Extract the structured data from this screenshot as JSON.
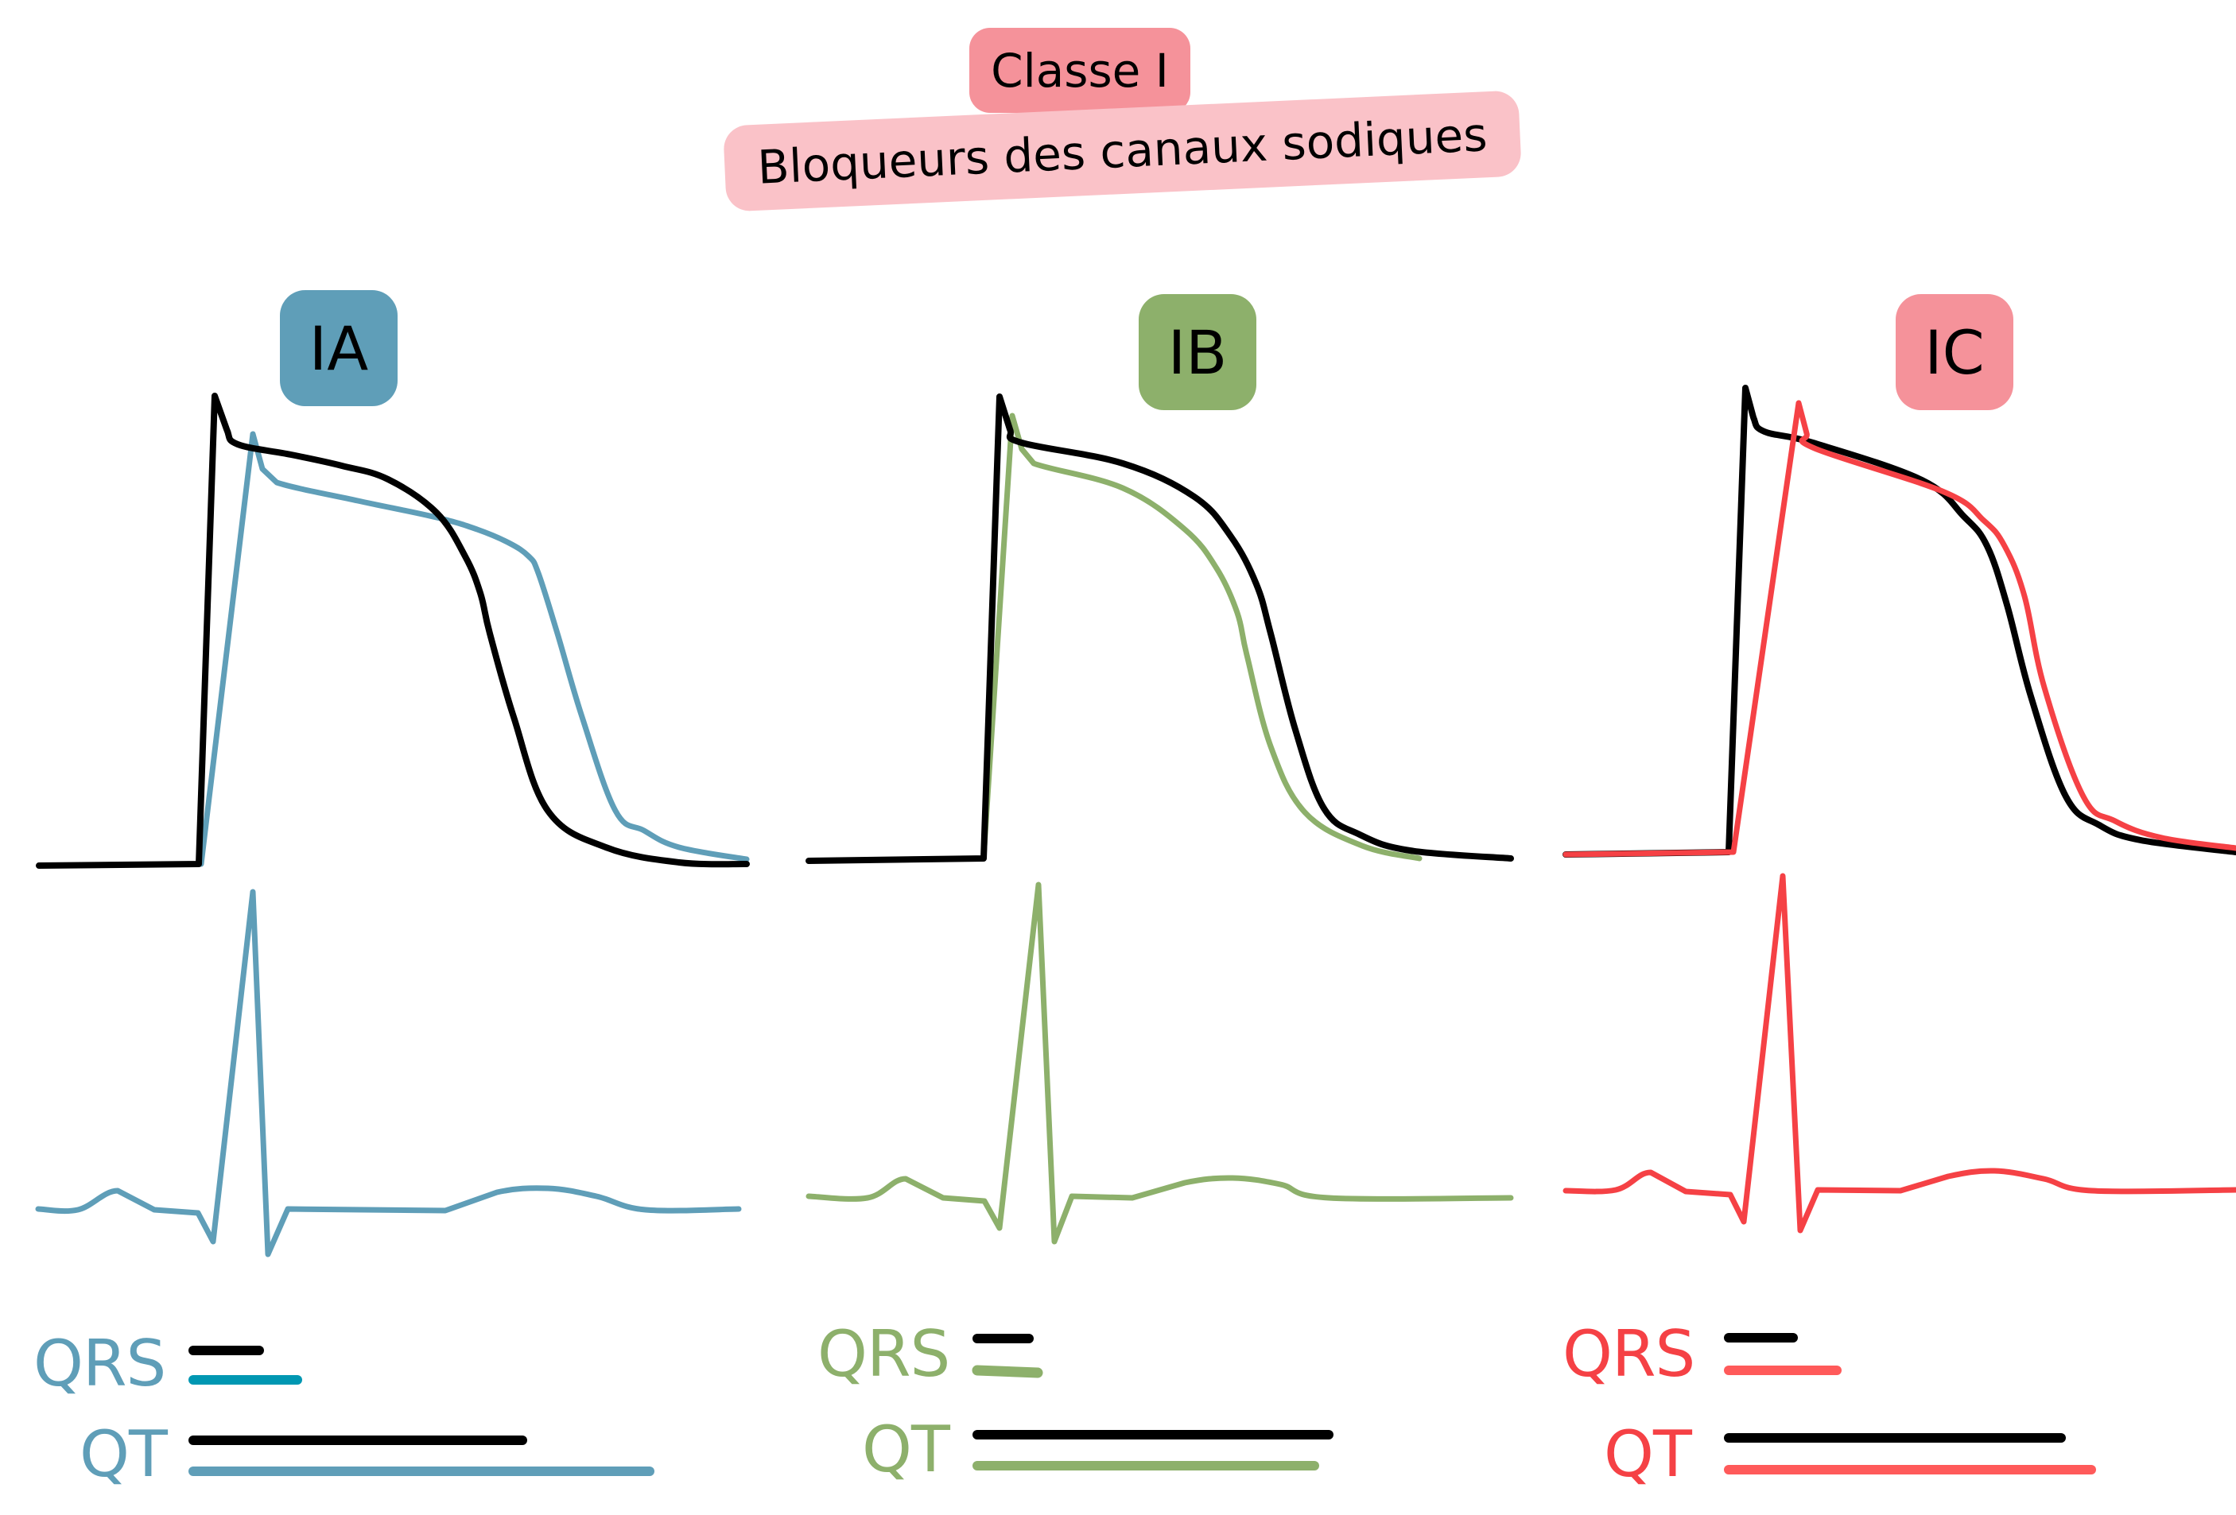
{
  "header": {
    "title": "Classe I",
    "subtitle": "Bloqueurs des canaux sodiques"
  },
  "colors": {
    "title_bg": "#F5929A",
    "subtitle_bg": "#FAC2C8",
    "reference": "#000000",
    "IA": "#5F9EB8",
    "IA_qrs_bar": "#0097B2",
    "IB": "#8DB06B",
    "IC": "#F54145",
    "IC_bar": "#FF5A5A",
    "IC_box": "#F5929A"
  },
  "panels": [
    {
      "id": "IA",
      "label": "IA",
      "box_color": "#5F9EB8",
      "drug_color": "#5F9EB8",
      "qrs_label": "QRS",
      "qt_label": "QT"
    },
    {
      "id": "IB",
      "label": "IB",
      "box_color": "#8DB06B",
      "drug_color": "#8DB06B",
      "qrs_label": "QRS",
      "qt_label": "QT"
    },
    {
      "id": "IC",
      "label": "IC",
      "box_color": "#F5929A",
      "drug_color": "#F54145",
      "qrs_label": "QRS",
      "qt_label": "QT"
    }
  ],
  "chart_data": [
    {
      "type": "line",
      "title": "IA",
      "description": "Action potential: reference (black) vs class IA (blue) — slower phase 0 upstroke, prolonged repolarization",
      "series": [
        {
          "name": "reference_action_potential",
          "color": "#000000",
          "points": [
            [
              49,
              1089
            ],
            [
              250,
              1087
            ],
            [
              270,
              498
            ],
            [
              285,
              540
            ],
            [
              299,
              559
            ],
            [
              366,
              572
            ],
            [
              430,
              586
            ],
            [
              488,
              603
            ],
            [
              549,
              645
            ],
            [
              585,
              700
            ],
            [
              604,
              746
            ],
            [
              616,
              797
            ],
            [
              646,
              902
            ],
            [
              689,
              1020
            ],
            [
              762,
              1066
            ],
            [
              854,
              1085
            ],
            [
              939,
              1087
            ]
          ]
        },
        {
          "name": "class_IA_action_potential",
          "color": "#5F9EB8",
          "points": [
            [
              253,
              1087
            ],
            [
              318,
              546
            ],
            [
              330,
              590
            ],
            [
              348,
              607
            ],
            [
              450,
              630
            ],
            [
              549,
              651
            ],
            [
              600,
              666
            ],
            [
              640,
              683
            ],
            [
              665,
              700
            ],
            [
              677,
              721
            ],
            [
              701,
              797
            ],
            [
              732,
              902
            ],
            [
              774,
              1020
            ],
            [
              810,
              1045
            ],
            [
              854,
              1066
            ],
            [
              939,
              1081
            ]
          ]
        },
        {
          "name": "class_IA_ecg",
          "color": "#5F9EB8",
          "points": [
            [
              48,
              1521
            ],
            [
              98,
              1522
            ],
            [
              148,
              1498
            ],
            [
              194,
              1522
            ],
            [
              249,
              1526
            ],
            [
              268,
              1562
            ],
            [
              318,
              1122
            ],
            [
              337,
              1578
            ],
            [
              362,
              1521
            ],
            [
              560,
              1523
            ],
            [
              625,
              1500
            ],
            [
              689,
              1495
            ],
            [
              750,
              1505
            ],
            [
              812,
              1522
            ],
            [
              929,
              1521
            ]
          ]
        }
      ],
      "intervals": {
        "QRS": {
          "reference_length": 84,
          "drug_length": 132
        },
        "QT": {
          "reference_length": 414,
          "drug_length": 574
        }
      }
    },
    {
      "type": "line",
      "title": "IB",
      "description": "Action potential: reference (black) vs class IB (green) — shortened repolarization",
      "series": [
        {
          "name": "reference_action_potential",
          "color": "#000000",
          "points": [
            [
              1017,
              1083
            ],
            [
              1237,
              1080
            ],
            [
              1257,
              499
            ],
            [
              1270,
              540
            ],
            [
              1285,
              557
            ],
            [
              1412,
              583
            ],
            [
              1502,
              625
            ],
            [
              1548,
              675
            ],
            [
              1580,
              735
            ],
            [
              1598,
              797
            ],
            [
              1629,
              918
            ],
            [
              1665,
              1017
            ],
            [
              1710,
              1050
            ],
            [
              1773,
              1070
            ],
            [
              1900,
              1080
            ]
          ]
        },
        {
          "name": "class_IB_action_potential",
          "color": "#8DB06B",
          "points": [
            [
              1237,
              1080
            ],
            [
              1273,
              523
            ],
            [
              1285,
              565
            ],
            [
              1300,
              583
            ],
            [
              1412,
              614
            ],
            [
              1490,
              666
            ],
            [
              1530,
              715
            ],
            [
              1556,
              771
            ],
            [
              1568,
              824
            ],
            [
              1598,
              939
            ],
            [
              1641,
              1022
            ],
            [
              1713,
              1064
            ],
            [
              1785,
              1080
            ]
          ]
        },
        {
          "name": "class_IB_ecg",
          "color": "#8DB06B",
          "points": [
            [
              1017,
              1505
            ],
            [
              1091,
              1507
            ],
            [
              1139,
              1483
            ],
            [
              1186,
              1507
            ],
            [
              1238,
              1511
            ],
            [
              1257,
              1545
            ],
            [
              1306,
              1113
            ],
            [
              1326,
              1562
            ],
            [
              1348,
              1505
            ],
            [
              1424,
              1507
            ],
            [
              1490,
              1488
            ],
            [
              1550,
              1482
            ],
            [
              1610,
              1490
            ],
            [
              1671,
              1507
            ],
            [
              1900,
              1507
            ]
          ]
        }
      ],
      "intervals": {
        "QRS": {
          "reference_length": 65,
          "drug_length": 76
        },
        "QT": {
          "reference_length": 442,
          "drug_length": 424
        }
      }
    },
    {
      "type": "line",
      "title": "IC",
      "description": "Action potential: reference (black) vs class IC (red) — markedly slowed phase 0 upstroke",
      "series": [
        {
          "name": "reference_action_potential",
          "color": "#000000",
          "points": [
            [
              1969,
              1075
            ],
            [
              2174,
              1072
            ],
            [
              2195,
              488
            ],
            [
              2205,
              525
            ],
            [
              2219,
              543
            ],
            [
              2280,
              557
            ],
            [
              2417,
              604
            ],
            [
              2470,
              650
            ],
            [
              2499,
              687
            ],
            [
              2524,
              761
            ],
            [
              2554,
              876
            ],
            [
              2598,
              1002
            ],
            [
              2640,
              1038
            ],
            [
              2692,
              1057
            ],
            [
              2812,
              1072
            ]
          ]
        },
        {
          "name": "class_IC_action_potential",
          "color": "#F54145",
          "points": [
            [
              1969,
              1075
            ],
            [
              2180,
              1072
            ],
            [
              2262,
              507
            ],
            [
              2272,
              545
            ],
            [
              2282,
              564
            ],
            [
              2445,
              619
            ],
            [
              2495,
              655
            ],
            [
              2521,
              687
            ],
            [
              2546,
              750
            ],
            [
              2571,
              865
            ],
            [
              2620,
              1002
            ],
            [
              2660,
              1033
            ],
            [
              2719,
              1054
            ],
            [
              2812,
              1067
            ]
          ]
        },
        {
          "name": "class_IC_ecg",
          "color": "#F54145",
          "points": [
            [
              1969,
              1498
            ],
            [
              2032,
              1497
            ],
            [
              2076,
              1475
            ],
            [
              2120,
              1499
            ],
            [
              2176,
              1503
            ],
            [
              2193,
              1537
            ],
            [
              2242,
              1102
            ],
            [
              2264,
              1548
            ],
            [
              2286,
              1497
            ],
            [
              2390,
              1498
            ],
            [
              2450,
              1480
            ],
            [
              2508,
              1473
            ],
            [
              2570,
              1483
            ],
            [
              2631,
              1498
            ],
            [
              2812,
              1497
            ]
          ]
        }
      ],
      "intervals": {
        "QRS": {
          "reference_length": 81,
          "drug_length": 136
        },
        "QT": {
          "reference_length": 418,
          "drug_length": 456
        }
      }
    }
  ]
}
